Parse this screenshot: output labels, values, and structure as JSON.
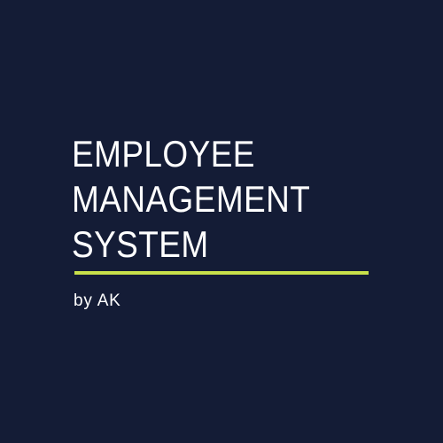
{
  "title": {
    "lines": [
      "EMPLOYEE",
      "MANAGEMENT",
      "SYSTEM"
    ]
  },
  "byline": "by AK",
  "colors": {
    "background": "#141c36",
    "text": "#ffffff",
    "accent": "#c8e04a"
  }
}
